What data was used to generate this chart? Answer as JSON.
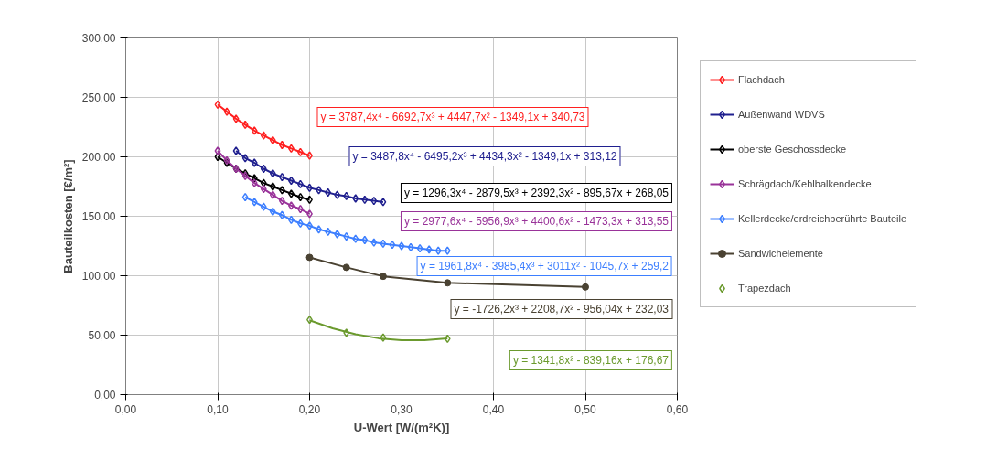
{
  "chart_data": {
    "type": "line",
    "xlabel": "U-Wert [W/(m²K)]",
    "ylabel": "Bauteilkosten [€/m²]",
    "xlim": [
      0,
      0.6
    ],
    "xticks": [
      {
        "value": 0,
        "label": "0,00"
      },
      {
        "value": 0.1,
        "label": "0,10"
      },
      {
        "value": 0.2,
        "label": "0,20"
      },
      {
        "value": 0.3,
        "label": "0,30"
      },
      {
        "value": 0.4,
        "label": "0,40"
      },
      {
        "value": 0.5,
        "label": "0,50"
      },
      {
        "value": 0.6,
        "label": "0,60"
      }
    ],
    "ylim": [
      0,
      300
    ],
    "yticks": [
      {
        "value": 0,
        "label": "0,00"
      },
      {
        "value": 50,
        "label": "50,00"
      },
      {
        "value": 100,
        "label": "100,00"
      },
      {
        "value": 150,
        "label": "150,00"
      },
      {
        "value": 200,
        "label": "200,00"
      },
      {
        "value": 250,
        "label": "250,00"
      },
      {
        "value": 300,
        "label": "300,00"
      }
    ],
    "grid": true,
    "legend": "right",
    "marker": "diamond",
    "line_style": "solid",
    "series": [
      {
        "name": "Flachdach",
        "color": "#ff2020",
        "x": [
          0.1,
          0.11,
          0.12,
          0.13,
          0.14,
          0.15,
          0.16,
          0.17,
          0.18,
          0.19,
          0.2
        ],
        "values": [
          244,
          238,
          232,
          227,
          222,
          218,
          214,
          210,
          207,
          204,
          201
        ]
      },
      {
        "name": "Außenwand WDVS",
        "color": "#20208f",
        "x": [
          0.12,
          0.13,
          0.14,
          0.15,
          0.16,
          0.17,
          0.18,
          0.19,
          0.2,
          0.21,
          0.22,
          0.23,
          0.24,
          0.25,
          0.26,
          0.27,
          0.28
        ],
        "values": [
          205,
          199,
          195,
          190,
          186,
          183,
          180,
          177,
          174,
          172,
          170,
          168,
          167,
          165,
          164,
          163,
          162
        ]
      },
      {
        "name": "oberste Geschossdecke",
        "color": "#000000",
        "x": [
          0.1,
          0.11,
          0.12,
          0.13,
          0.14,
          0.15,
          0.16,
          0.17,
          0.18,
          0.19,
          0.2
        ],
        "values": [
          200,
          195,
          190,
          186,
          182,
          178,
          175,
          172,
          169,
          166,
          164
        ]
      },
      {
        "name": "Schrägdach/Kehlbalkendecke",
        "color": "#993399",
        "x": [
          0.1,
          0.11,
          0.12,
          0.13,
          0.14,
          0.15,
          0.16,
          0.17,
          0.18,
          0.19,
          0.2
        ],
        "values": [
          205,
          197,
          190,
          184,
          178,
          173,
          168,
          163,
          159,
          156,
          152
        ]
      },
      {
        "name": "Kellerdecke/erdreichberührte Bauteile",
        "color": "#3d7fff",
        "x": [
          0.13,
          0.14,
          0.15,
          0.16,
          0.17,
          0.18,
          0.19,
          0.2,
          0.21,
          0.22,
          0.23,
          0.24,
          0.25,
          0.26,
          0.27,
          0.28,
          0.29,
          0.3,
          0.31,
          0.32,
          0.33,
          0.34,
          0.35
        ],
        "values": [
          166,
          162,
          158,
          154,
          151,
          147,
          144,
          142,
          139,
          137,
          135,
          133,
          131,
          130,
          128,
          127,
          126,
          125,
          124,
          123,
          122,
          121,
          121
        ]
      },
      {
        "name": "Sandwichelemente",
        "color": "#4a4232",
        "marker": "circle",
        "x": [
          0.2,
          0.24,
          0.28,
          0.35,
          0.5
        ],
        "values": [
          115.4,
          107,
          99.5,
          94,
          90.5
        ]
      },
      {
        "name": "Trapezdach",
        "color": "#6b9a2e",
        "type": "scatter",
        "x": [
          0.2,
          0.24,
          0.28,
          0.35
        ],
        "values": [
          63,
          52,
          48,
          47
        ]
      },
      {
        "color": "#6b9a2e",
        "type": "line",
        "marker": "none",
        "x": [
          0.2,
          0.225,
          0.25,
          0.275,
          0.3,
          0.325,
          0.35
        ],
        "values": [
          62.5,
          55.8,
          50.7,
          47.4,
          45.7,
          45.7,
          47.3
        ]
      }
    ],
    "annotations": [
      "y = 3787,4x⁴ - 6692,7x³ + 4447,7x² - 1349,1x + 340,73",
      "y = 3487,8x⁴ - 6495,2x³ + 4434,3x² - 1349,1x + 313,12",
      "y = 1296,3x⁴ - 2879,5x³ + 2392,3x² - 895,67x + 268,05",
      "y = 2977,6x⁴ - 5956,9x³ + 4400,6x² - 1473,3x + 313,55",
      "y = 1961,8x⁴ - 3985,4x³ + 3011x² - 1045,7x + 259,2",
      "y = -1726,2x³ + 2208,7x² - 956,04x + 232,03",
      "y = 1341,8x² - 839,16x + 176,67"
    ]
  }
}
